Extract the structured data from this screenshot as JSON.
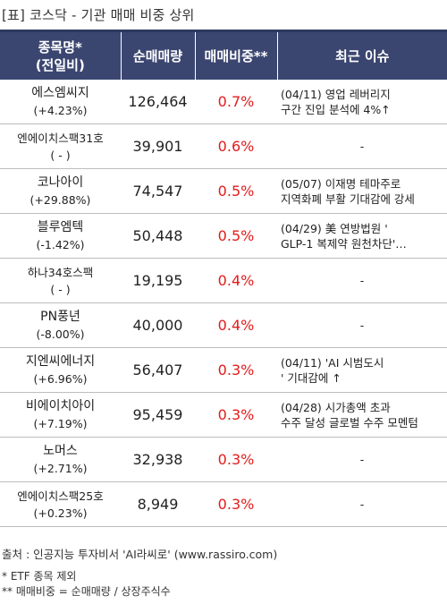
{
  "title": "[표] 코스닥 - 기관 매매 비중 상위",
  "header": {
    "col1_line1": "종목명*",
    "col1_line2": "(전일비)",
    "col2": "순매매량",
    "col3": "매매비중**",
    "col4": "최근 이슈"
  },
  "rows": [
    {
      "name": "에스엠씨지",
      "change": "(+4.23%)",
      "volume": "126,464",
      "ratio": "0.7%",
      "issue_line1": "(04/11) 영업 레버리지",
      "issue_line2": "구간 진입 분석에 4%↑"
    },
    {
      "name": "엔에이치스팩31호",
      "change": "( - )",
      "volume": "39,901",
      "ratio": "0.6%",
      "issue_line1": "-",
      "issue_line2": ""
    },
    {
      "name": "코나아이",
      "change": "(+29.88%)",
      "volume": "74,547",
      "ratio": "0.5%",
      "issue_line1": "(05/07) 이재명 테마주로",
      "issue_line2": " 지역화폐 부활 기대감에 강세"
    },
    {
      "name": "블루엠텍",
      "change": "(-1.42%)",
      "volume": "50,448",
      "ratio": "0.5%",
      "issue_line1": "(04/29) 美 연방법원 '",
      "issue_line2": "GLP-1 복제약 원천차단'…"
    },
    {
      "name": "하나34호스팩",
      "change": "( - )",
      "volume": "19,195",
      "ratio": "0.4%",
      "issue_line1": "-",
      "issue_line2": ""
    },
    {
      "name": "PN풍년",
      "change": "(-8.00%)",
      "volume": "40,000",
      "ratio": "0.4%",
      "issue_line1": "-",
      "issue_line2": ""
    },
    {
      "name": "지엔씨에너지",
      "change": "(+6.96%)",
      "volume": "56,407",
      "ratio": "0.3%",
      "issue_line1": "(04/11) 'AI 시범도시",
      "issue_line2": "' 기대감에 ↑"
    },
    {
      "name": "비에이치아이",
      "change": "(+7.19%)",
      "volume": "95,459",
      "ratio": "0.3%",
      "issue_line1": "(04/28) 시가총액 초과",
      "issue_line2": "수주 달성 글로벌 수주 모멘텀"
    },
    {
      "name": "노머스",
      "change": "(+2.71%)",
      "volume": "32,938",
      "ratio": "0.3%",
      "issue_line1": "-",
      "issue_line2": ""
    },
    {
      "name": "엔에이치스팩25호",
      "change": "(+0.23%)",
      "volume": "8,949",
      "ratio": "0.3%",
      "issue_line1": "-",
      "issue_line2": ""
    }
  ],
  "footer": {
    "source": "출처 : 인공지능 투자비서 'AI라씨로' (www.rassiro.com)",
    "note1": "* ETF 종목 제외",
    "note2": "** 매매비중 = 순매매량 / 상장주식수"
  },
  "colors": {
    "header_bg": "#3b4670",
    "ratio_red": "#e31b1b"
  }
}
